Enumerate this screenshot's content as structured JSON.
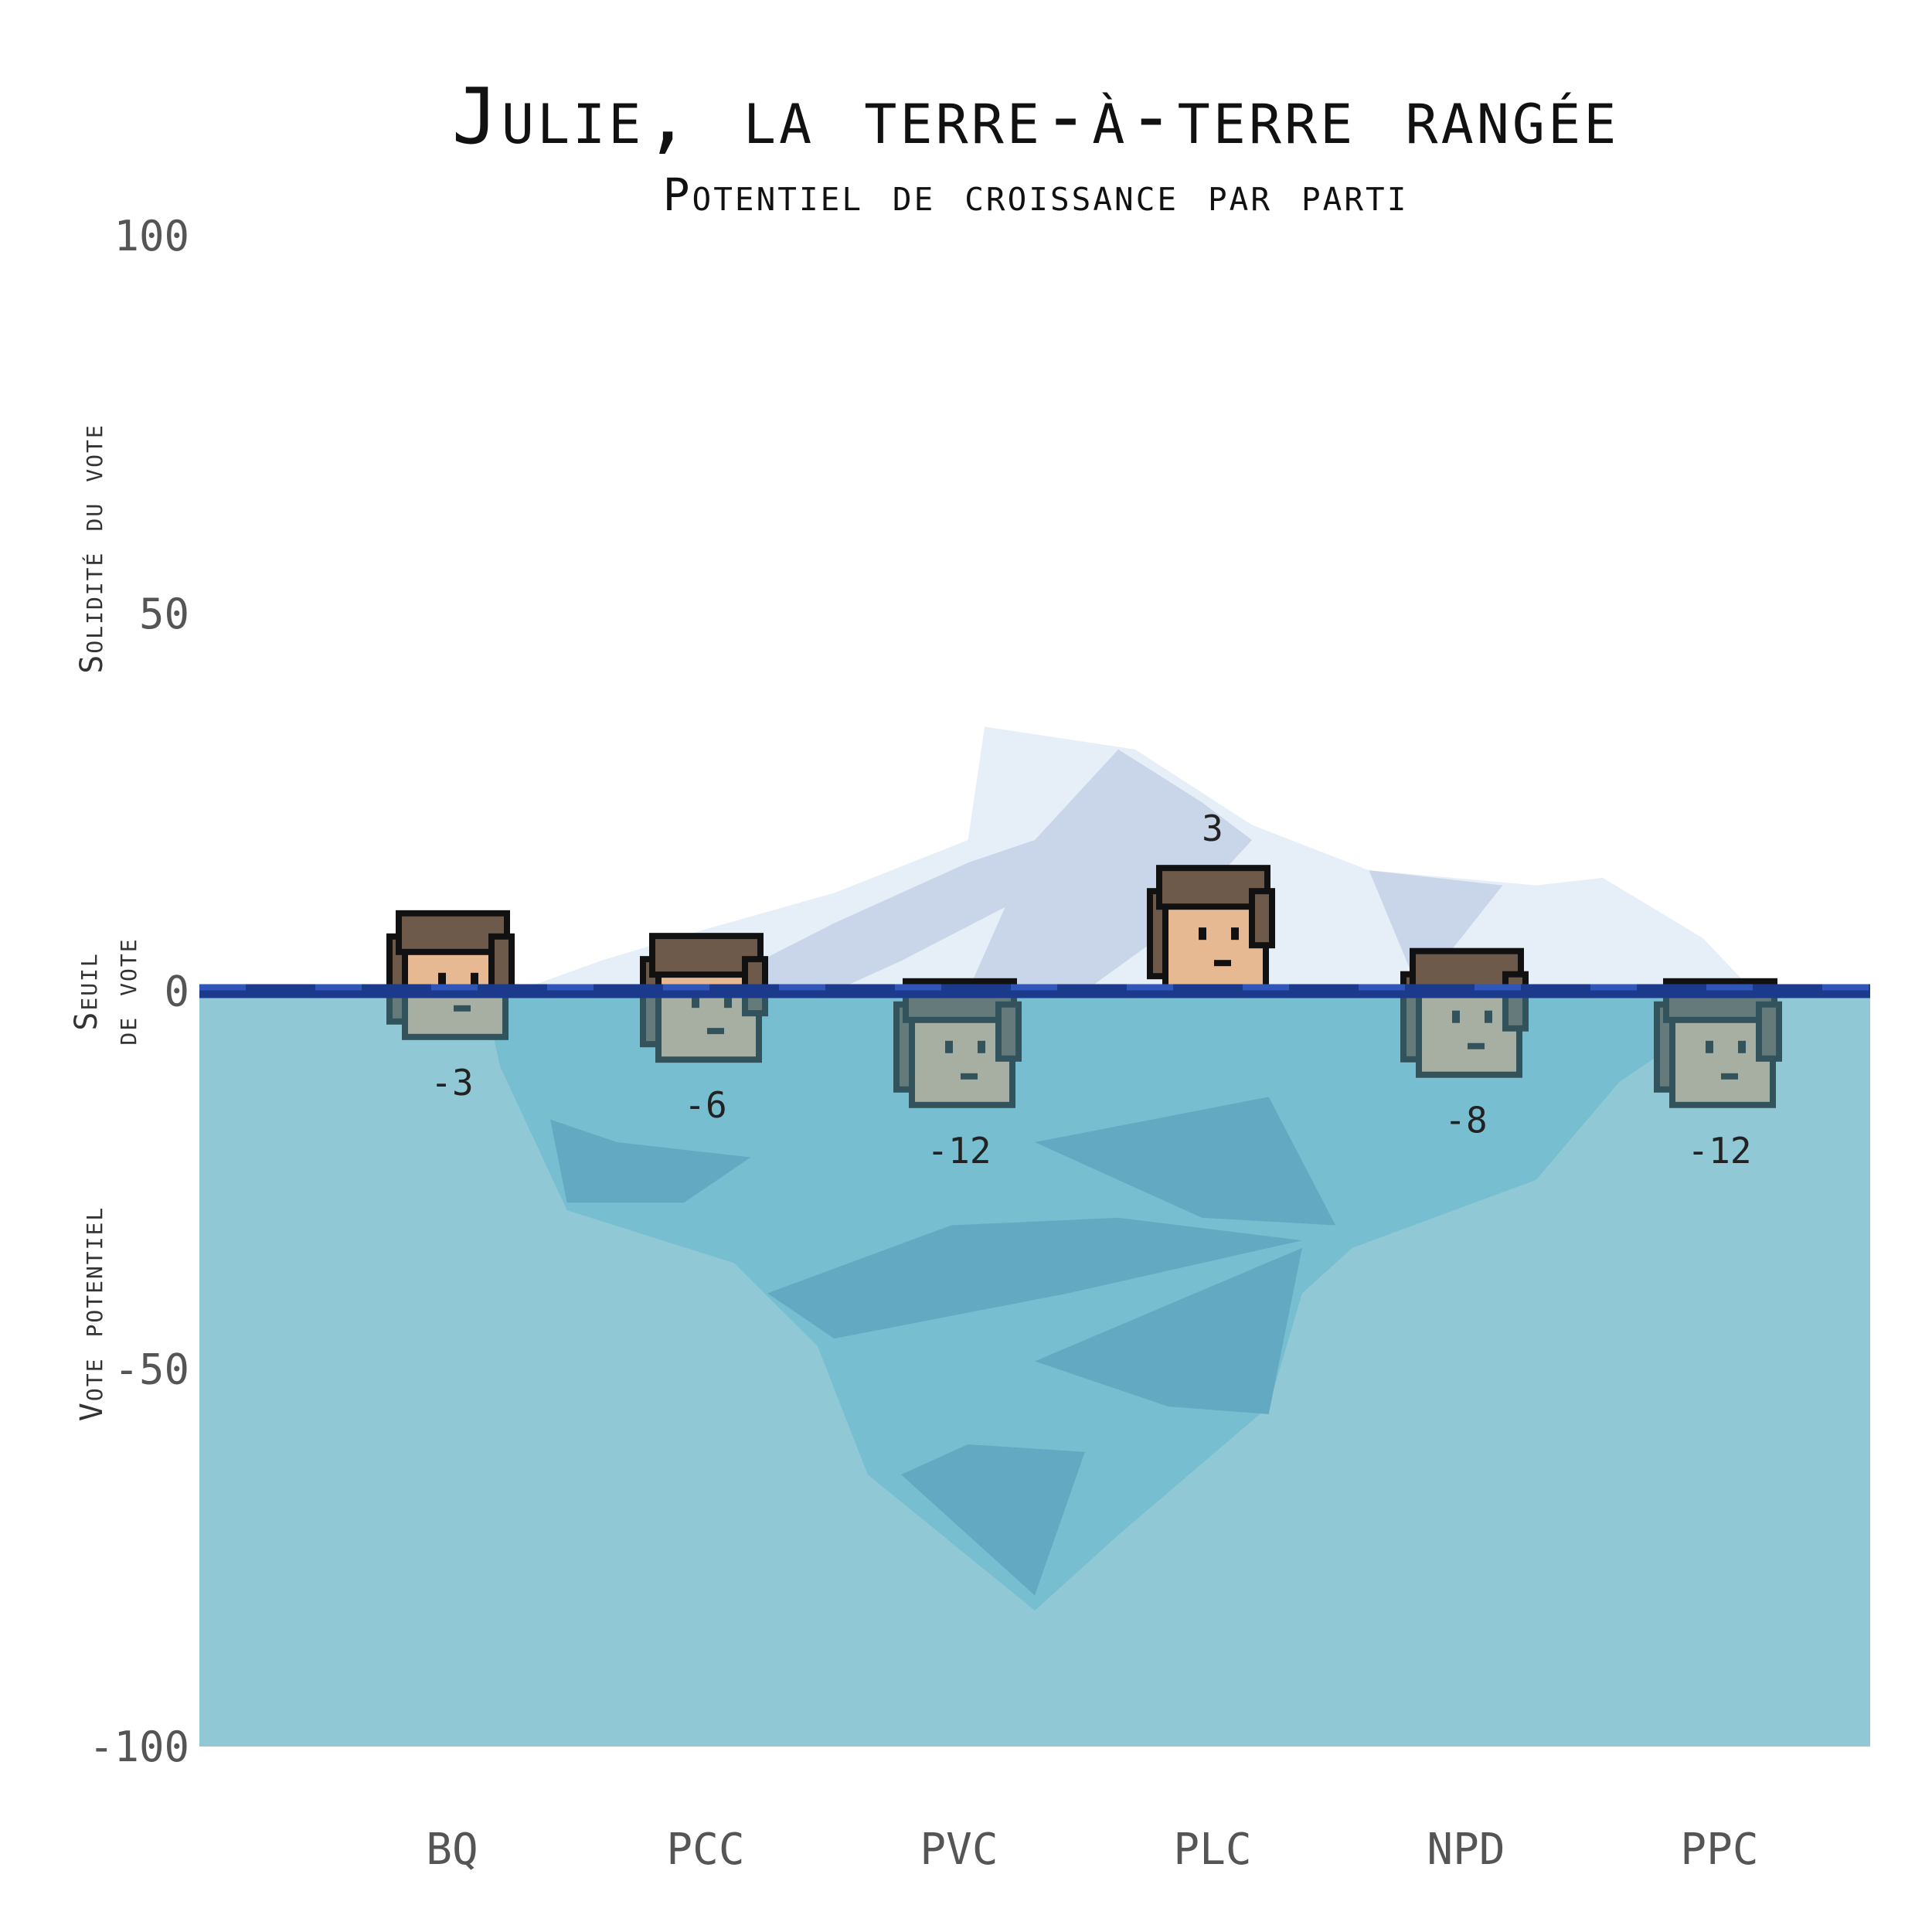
{
  "chart_data": {
    "type": "scatter",
    "title": "Julie, la terre-à-terre rangée",
    "subtitle": "Potentiel de croissance par parti",
    "ylabel_top": "Solidité du vote",
    "ylabel_middle": [
      "Seuil",
      "de vote"
    ],
    "ylabel_bottom": "Vote potentiel",
    "ylim": [
      -100,
      100
    ],
    "yticks": [
      100,
      50,
      0,
      -50,
      -100
    ],
    "threshold": 0,
    "categories": [
      "BQ",
      "PCC",
      "PVC",
      "PLC",
      "NPD",
      "PPC"
    ],
    "values": [
      -3,
      -6,
      -12,
      3,
      -8,
      -12
    ],
    "value_labels": [
      "-3",
      "-6",
      "-12",
      "3",
      "-8",
      "-12"
    ],
    "grid": false,
    "colors": {
      "water": "#bde6f1",
      "water_mid": "#8fd3e8",
      "iceberg_under": "#6aaecb",
      "iceberg_above": "#e6eff8",
      "iceberg_shade": "#c9d6ea",
      "threshold_line": "#1b3a8c",
      "hair": "#6e5a4b",
      "skin": "#e6b993",
      "outline": "#111111"
    },
    "marker_icon": "person-head-icon"
  }
}
